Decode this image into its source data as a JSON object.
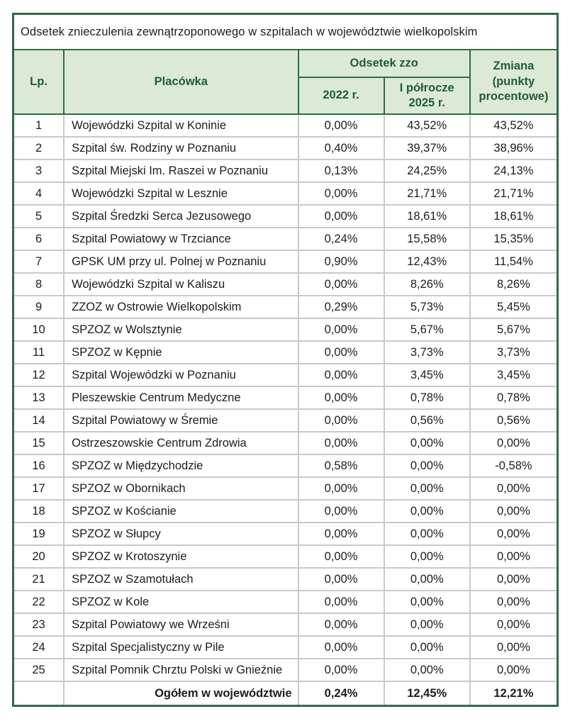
{
  "title": "Odsetek znieczulenia zewnątrzoponowego w szpitalach w województwie wielkopolskim",
  "colors": {
    "border_green": "#2e6b4a",
    "header_bg": "#dcead5",
    "header_text": "#1e5d3a",
    "grid_gray": "#c9c9c9",
    "text": "#1c1c1c",
    "page_bg": "#ffffff"
  },
  "table": {
    "headers": {
      "lp": "Lp.",
      "facility": "Placówka",
      "group": "Odsetek zzo",
      "y2022": "2022 r.",
      "h2025": "I półrocze 2025 r.",
      "change": "Zmiana (punkty procentowe)"
    },
    "rows": [
      {
        "lp": "1",
        "facility": "Wojewódzki Szpital w Koninie",
        "y2022": "0,00%",
        "h2025": "43,52%",
        "change": "43,52%"
      },
      {
        "lp": "2",
        "facility": "Szpital św. Rodziny w Poznaniu",
        "y2022": "0,40%",
        "h2025": "39,37%",
        "change": "38,96%"
      },
      {
        "lp": "3",
        "facility": "Szpital Miejski Im. Raszei w Poznaniu",
        "y2022": "0,13%",
        "h2025": "24,25%",
        "change": "24,13%"
      },
      {
        "lp": "4",
        "facility": "Wojewódzki Szpital w Lesznie",
        "y2022": "0,00%",
        "h2025": "21,71%",
        "change": "21,71%"
      },
      {
        "lp": "5",
        "facility": "Szpital Średzki Serca Jezusowego",
        "y2022": "0,00%",
        "h2025": "18,61%",
        "change": "18,61%"
      },
      {
        "lp": "6",
        "facility": "Szpital Powiatowy w Trzciance",
        "y2022": "0,24%",
        "h2025": "15,58%",
        "change": "15,35%"
      },
      {
        "lp": "7",
        "facility": "GPSK UM przy ul. Polnej w Poznaniu",
        "y2022": "0,90%",
        "h2025": "12,43%",
        "change": "11,54%"
      },
      {
        "lp": "8",
        "facility": "Wojewódzki Szpital w Kaliszu",
        "y2022": "0,00%",
        "h2025": "8,26%",
        "change": "8,26%"
      },
      {
        "lp": "9",
        "facility": "ZZOZ w Ostrowie Wielkopolskim",
        "y2022": "0,29%",
        "h2025": "5,73%",
        "change": "5,45%"
      },
      {
        "lp": "10",
        "facility": "SPZOZ w Wolsztynie",
        "y2022": "0,00%",
        "h2025": "5,67%",
        "change": "5,67%"
      },
      {
        "lp": "11",
        "facility": "SPZOZ w Kępnie",
        "y2022": "0,00%",
        "h2025": "3,73%",
        "change": "3,73%"
      },
      {
        "lp": "12",
        "facility": "Szpital Wojewódzki w Poznaniu",
        "y2022": "0,00%",
        "h2025": "3,45%",
        "change": "3,45%"
      },
      {
        "lp": "13",
        "facility": "Pleszewskie Centrum Medyczne",
        "y2022": "0,00%",
        "h2025": "0,78%",
        "change": "0,78%"
      },
      {
        "lp": "14",
        "facility": "Szpital Powiatowy w Śremie",
        "y2022": "0,00%",
        "h2025": "0,56%",
        "change": "0,56%"
      },
      {
        "lp": "15",
        "facility": "Ostrzeszowskie Centrum Zdrowia",
        "y2022": "0,00%",
        "h2025": "0,00%",
        "change": "0,00%"
      },
      {
        "lp": "16",
        "facility": "SPZOZ w Międzychodzie",
        "y2022": "0,58%",
        "h2025": "0,00%",
        "change": "-0,58%"
      },
      {
        "lp": "17",
        "facility": "SPZOZ w Obornikach",
        "y2022": "0,00%",
        "h2025": "0,00%",
        "change": "0,00%"
      },
      {
        "lp": "18",
        "facility": "SPZOZ w Kościanie",
        "y2022": "0,00%",
        "h2025": "0,00%",
        "change": "0,00%"
      },
      {
        "lp": "19",
        "facility": "SPZOZ w Słupcy",
        "y2022": "0,00%",
        "h2025": "0,00%",
        "change": "0,00%"
      },
      {
        "lp": "20",
        "facility": "SPZOZ w Krotoszynie",
        "y2022": "0,00%",
        "h2025": "0,00%",
        "change": "0,00%"
      },
      {
        "lp": "21",
        "facility": "SPZOZ w Szamotułach",
        "y2022": "0,00%",
        "h2025": "0,00%",
        "change": "0,00%"
      },
      {
        "lp": "22",
        "facility": "SPZOZ w Kole",
        "y2022": "0,00%",
        "h2025": "0,00%",
        "change": "0,00%"
      },
      {
        "lp": "23",
        "facility": "Szpital Powiatowy we Wrześni",
        "y2022": "0,00%",
        "h2025": "0,00%",
        "change": "0,00%"
      },
      {
        "lp": "24",
        "facility": "Szpital Specjalistyczny w Pile",
        "y2022": "0,00%",
        "h2025": "0,00%",
        "change": "0,00%"
      },
      {
        "lp": "25",
        "facility": "Szpital Pomnik Chrztu Polski w Gnieźnie",
        "y2022": "0,00%",
        "h2025": "0,00%",
        "change": "0,00%"
      }
    ],
    "total": {
      "label": "Ogółem w województwie",
      "y2022": "0,24%",
      "h2025": "12,45%",
      "change": "12,21%"
    }
  }
}
